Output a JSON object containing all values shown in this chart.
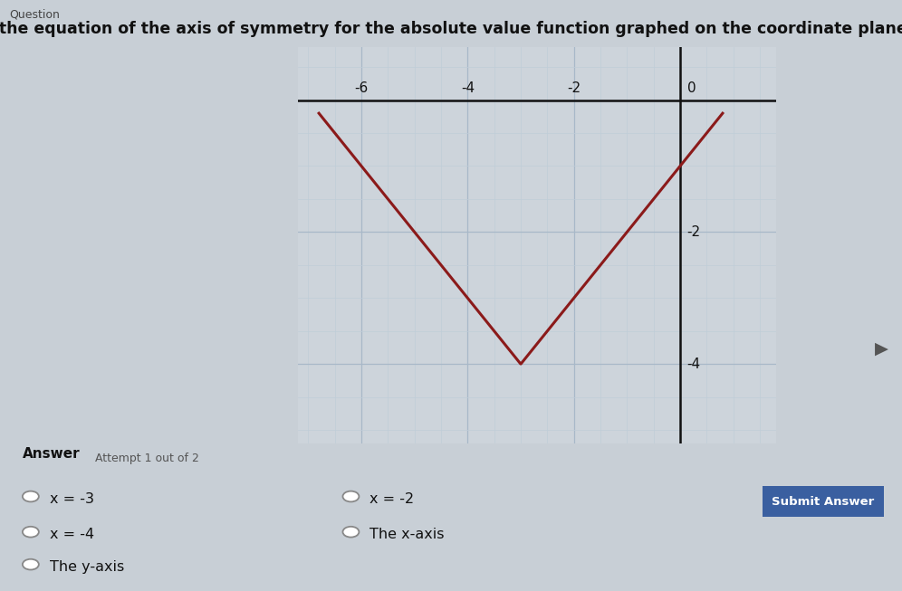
{
  "question": "What is the equation of the axis of symmetry for the absolute value function graphed on the coordinate plane below?",
  "question_prefix": "Question",
  "answer_label": "Answer",
  "attempt_label": "Attempt 1 out of 2",
  "graph": {
    "xlim": [
      -7.2,
      1.8
    ],
    "ylim": [
      -5.2,
      0.8
    ],
    "xticks": [
      -6,
      -4,
      -2,
      0
    ],
    "yticks": [
      -4,
      -2
    ],
    "vertex_x": -3,
    "vertex_y": -4,
    "x_start": -6.8,
    "x_end": 0.8,
    "grid_major_color": "#a8b8c8",
    "grid_minor_color": "#c0cdd8",
    "axis_color": "#111111",
    "func_color": "#8B1A1A",
    "func_linewidth": 2.2,
    "bg_color": "#cdd4db"
  },
  "choices": [
    {
      "text": "x = -3",
      "row": 0,
      "col": 0
    },
    {
      "text": "x = -2",
      "row": 0,
      "col": 1
    },
    {
      "text": "x = -4",
      "row": 1,
      "col": 0
    },
    {
      "text": "The x-axis",
      "row": 1,
      "col": 1
    },
    {
      "text": "The y-axis",
      "row": 2,
      "col": 0
    }
  ],
  "submit_button": {
    "text": "Submit Answer",
    "bg_color": "#3a5fa0",
    "text_color": "#ffffff"
  },
  "page_bg": "#c8cfd6",
  "text_color": "#111111",
  "title_fontsize": 12.5,
  "choice_fontsize": 11.5
}
